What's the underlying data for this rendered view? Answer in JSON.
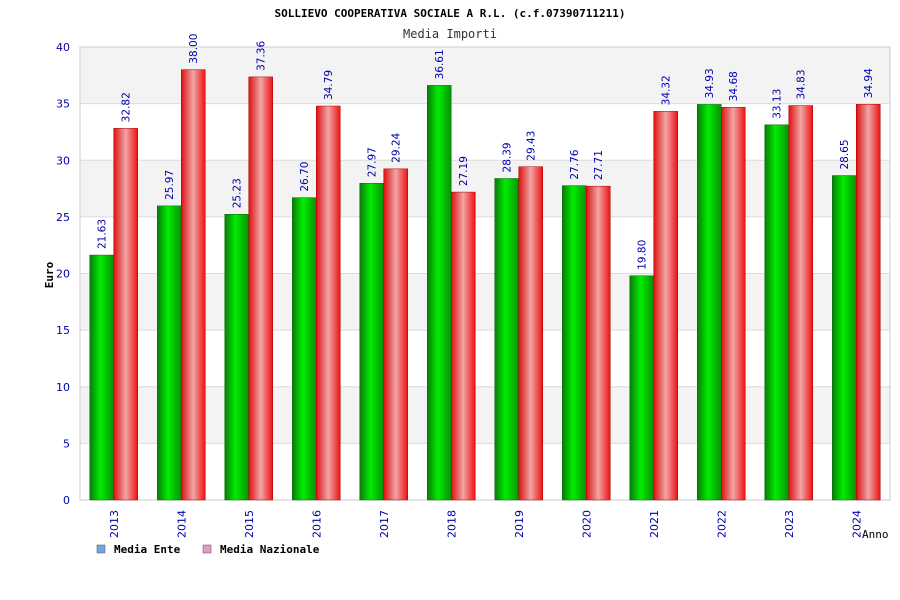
{
  "chart_data": {
    "type": "bar",
    "title": "SOLLIEVO COOPERATIVA SOCIALE A R.L. (c.f.07390711211)",
    "subtitle": "Media Importi",
    "xlabel": "Anno",
    "ylabel": "Euro",
    "ylim": [
      0,
      40
    ],
    "yticks": [
      "0",
      "5",
      "10",
      "15",
      "20",
      "25",
      "30",
      "35",
      "40"
    ],
    "grid": true,
    "legend_position": "bottom-left",
    "categories": [
      "2013",
      "2014",
      "2015",
      "2016",
      "2017",
      "2018",
      "2019",
      "2020",
      "2021",
      "2022",
      "2023",
      "2024"
    ],
    "series": [
      {
        "name": "Media Ente",
        "legend_color": "#6fa8dc",
        "color": "#00bb00",
        "values": [
          21.63,
          25.97,
          25.23,
          26.7,
          27.97,
          36.61,
          28.39,
          27.76,
          19.8,
          34.93,
          33.13,
          28.65
        ],
        "labels": [
          "21.63",
          "25.97",
          "25.23",
          "26.70",
          "27.97",
          "36.61",
          "28.39",
          "27.76",
          "19.80",
          "34.93",
          "33.13",
          "28.65"
        ]
      },
      {
        "name": "Media Nazionale",
        "legend_color": "#e39ac4",
        "color": "#ee1111",
        "values": [
          32.82,
          38.0,
          37.36,
          34.79,
          29.24,
          27.19,
          29.43,
          27.71,
          34.32,
          34.68,
          34.83,
          34.94
        ],
        "labels": [
          "32.82",
          "38.00",
          "37.36",
          "34.79",
          "29.24",
          "27.19",
          "29.43",
          "27.71",
          "34.32",
          "34.68",
          "34.83",
          "34.94"
        ]
      }
    ]
  }
}
